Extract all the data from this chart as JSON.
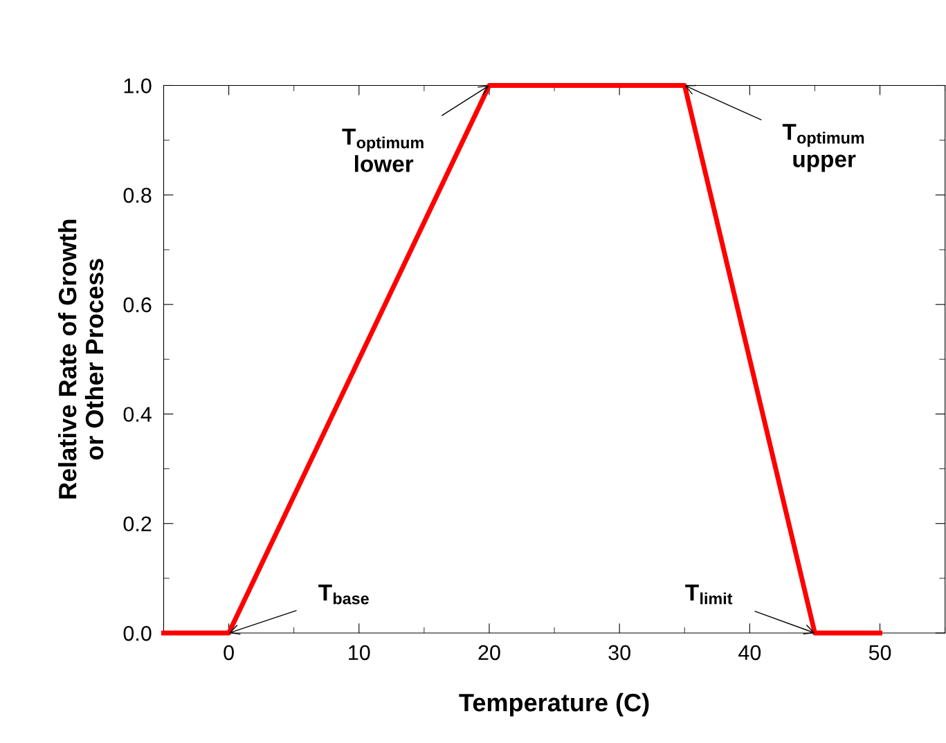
{
  "chart_data": {
    "type": "line",
    "xlabel": "Temperature (C)",
    "ylabel": "Relative Rate of Growth\nor Other Process",
    "x": [
      -5,
      0,
      20,
      35,
      45,
      50
    ],
    "series": [
      {
        "color": "#ff0000",
        "values": [
          0,
          0,
          1,
          1,
          0,
          0
        ]
      }
    ],
    "xlim": [
      -5,
      55
    ],
    "xticks": [
      0,
      10,
      20,
      30,
      40,
      50
    ],
    "ylim": [
      0,
      1
    ],
    "yticks": [
      {
        "value": 0,
        "label": "0.0"
      },
      0.2,
      0.4,
      0.6,
      0.8,
      {
        "value": 1,
        "label": "1.0"
      }
    ],
    "grid": false,
    "legend": false,
    "marker": "none",
    "line_style": "solid",
    "annotations": [
      {
        "text": "T$_{optimum}$\nlower",
        "x": 20,
        "y": 1
      },
      {
        "text": "T$_{optimum}$\nupper",
        "x": 35,
        "y": 1
      },
      {
        "text": "T$_{base}$",
        "x": 0,
        "y": 0
      },
      {
        "text": "T$_{limit}$",
        "x": 45,
        "y": 0
      }
    ]
  }
}
